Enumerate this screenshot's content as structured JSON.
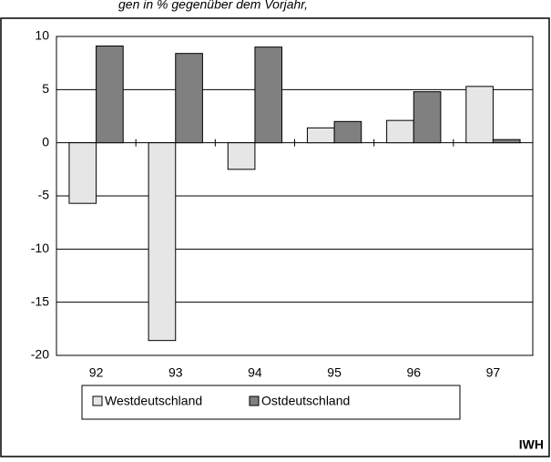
{
  "chart_data": {
    "type": "bar",
    "title": "gen in % gegenüber dem Vorjahr,",
    "categories": [
      "92",
      "93",
      "94",
      "95",
      "96",
      "97"
    ],
    "series": [
      {
        "name": "Westdeutschland",
        "color": "#e6e6e6",
        "values": [
          -5.7,
          -18.6,
          -2.5,
          1.4,
          2.1,
          5.3
        ]
      },
      {
        "name": "Ostdeutschland",
        "color": "#808080",
        "values": [
          9.1,
          8.4,
          9.0,
          2.0,
          4.8,
          0.3
        ]
      }
    ],
    "ylim": [
      -20,
      10
    ],
    "yticks": [
      -20,
      -15,
      -10,
      -5,
      0,
      5,
      10
    ],
    "grid": true,
    "source": "IWH"
  }
}
